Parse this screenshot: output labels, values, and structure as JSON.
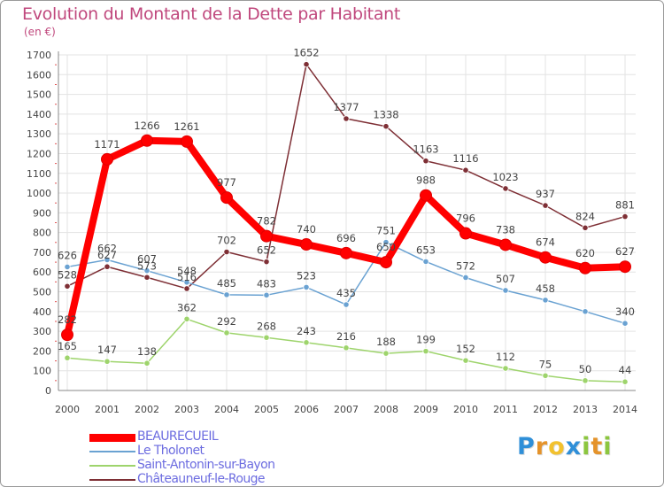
{
  "title": "Evolution du Montant de la Dette par Habitant",
  "unit": "(en €)",
  "logo": {
    "text": "Proxiti",
    "colors": [
      "#2f8fd8",
      "#e5932a",
      "#f2c12e",
      "#2f8fd8",
      "#8cc63f",
      "#e5932a",
      "#8cc63f"
    ]
  },
  "chart_data": {
    "type": "line",
    "x": [
      "2000",
      "2001",
      "2002",
      "2003",
      "2004",
      "2005",
      "2006",
      "2007",
      "2008",
      "2009",
      "2010",
      "2011",
      "2012",
      "2013",
      "2014"
    ],
    "ylim": [
      0,
      1700
    ],
    "yticks": [
      "0",
      "100",
      "200",
      "300",
      "400",
      "500",
      "600",
      "700",
      "800",
      "900",
      "1000",
      "1100",
      "1200",
      "1300",
      "1400",
      "1500",
      "1600",
      "1700"
    ],
    "grid": true,
    "legend_position": "bottom-left",
    "series": [
      {
        "name": "BEAURECUEIL",
        "color": "#ff0000",
        "width": 8,
        "values": [
          282,
          1171,
          1266,
          1261,
          977,
          782,
          740,
          696,
          650,
          988,
          796,
          738,
          674,
          620,
          627
        ],
        "labels": [
          "282",
          "1171",
          "1266",
          "1261",
          "977",
          "782",
          "740",
          "696",
          "650",
          "988",
          "796",
          "738",
          "674",
          "620",
          "627"
        ]
      },
      {
        "name": "Le Tholonet",
        "color": "#6aa2d2",
        "width": 1.5,
        "values": [
          626,
          662,
          607,
          548,
          485,
          483,
          523,
          435,
          751,
          653,
          572,
          507,
          458,
          400,
          340
        ],
        "labels": [
          "626",
          "662",
          "607",
          "548",
          "485",
          "483",
          "523",
          "435",
          "751",
          "653",
          "572",
          "507",
          "458",
          "",
          "340"
        ]
      },
      {
        "name": "Saint-Antonin-sur-Bayon",
        "color": "#9ed46c",
        "width": 1.5,
        "values": [
          165,
          147,
          138,
          362,
          292,
          268,
          243,
          216,
          188,
          199,
          152,
          112,
          75,
          50,
          44
        ],
        "labels": [
          "165",
          "147",
          "138",
          "362",
          "292",
          "268",
          "243",
          "216",
          "188",
          "199",
          "152",
          "112",
          "75",
          "50",
          "44"
        ]
      },
      {
        "name": "Châteauneuf-le-Rouge",
        "color": "#7e2f35",
        "width": 1.5,
        "values": [
          528,
          627,
          573,
          516,
          702,
          652,
          1652,
          1377,
          1338,
          1163,
          1116,
          1023,
          937,
          824,
          881
        ],
        "labels": [
          "528",
          "627",
          "573",
          "516",
          "702",
          "652",
          "1652",
          "1377",
          "1338",
          "1163",
          "1116",
          "1023",
          "937",
          "824",
          "881"
        ]
      }
    ]
  }
}
